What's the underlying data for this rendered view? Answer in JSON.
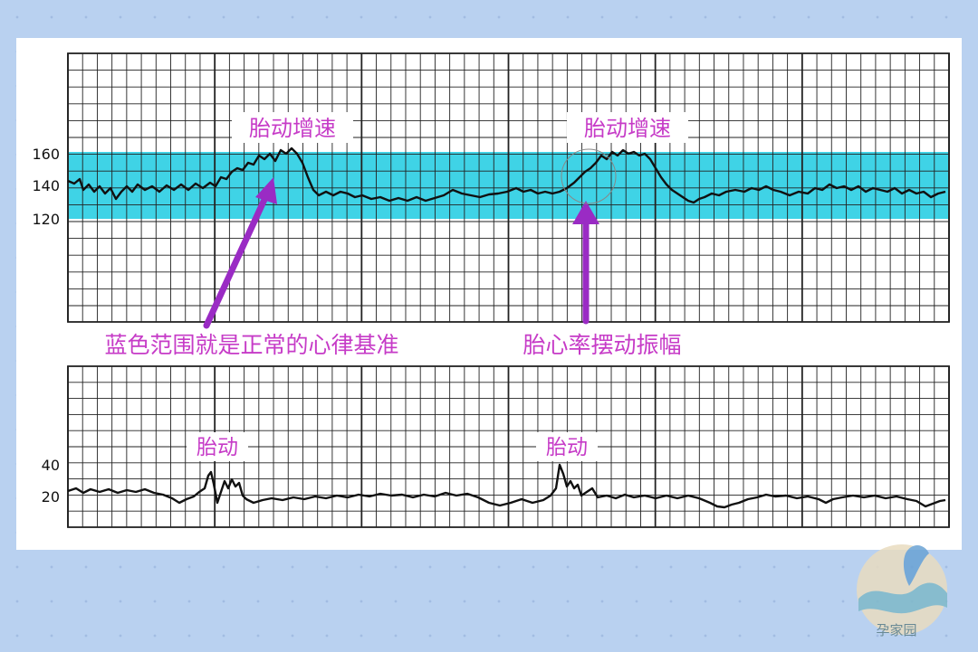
{
  "colors": {
    "background": "#b9d1f0",
    "normal_band": "#3fd3e6",
    "annotation": "#c63bc7",
    "arrow": "#9a2bc4",
    "trace": "#111111",
    "grid": "#222222"
  },
  "top_chart": {
    "y_ticks": [
      "160",
      "140",
      "120"
    ],
    "peak_label_1": "胎动增速",
    "peak_label_2": "胎动增速",
    "caption_left": "蓝色范围就是正常的心律基准",
    "caption_right": "胎心率摆动振幅"
  },
  "bottom_chart": {
    "y_ticks": [
      "40",
      "20"
    ],
    "movement_label_1": "胎动",
    "movement_label_2": "胎动"
  },
  "watermark": {
    "text": "孕家园",
    "icon": "wave-logo-icon"
  }
}
